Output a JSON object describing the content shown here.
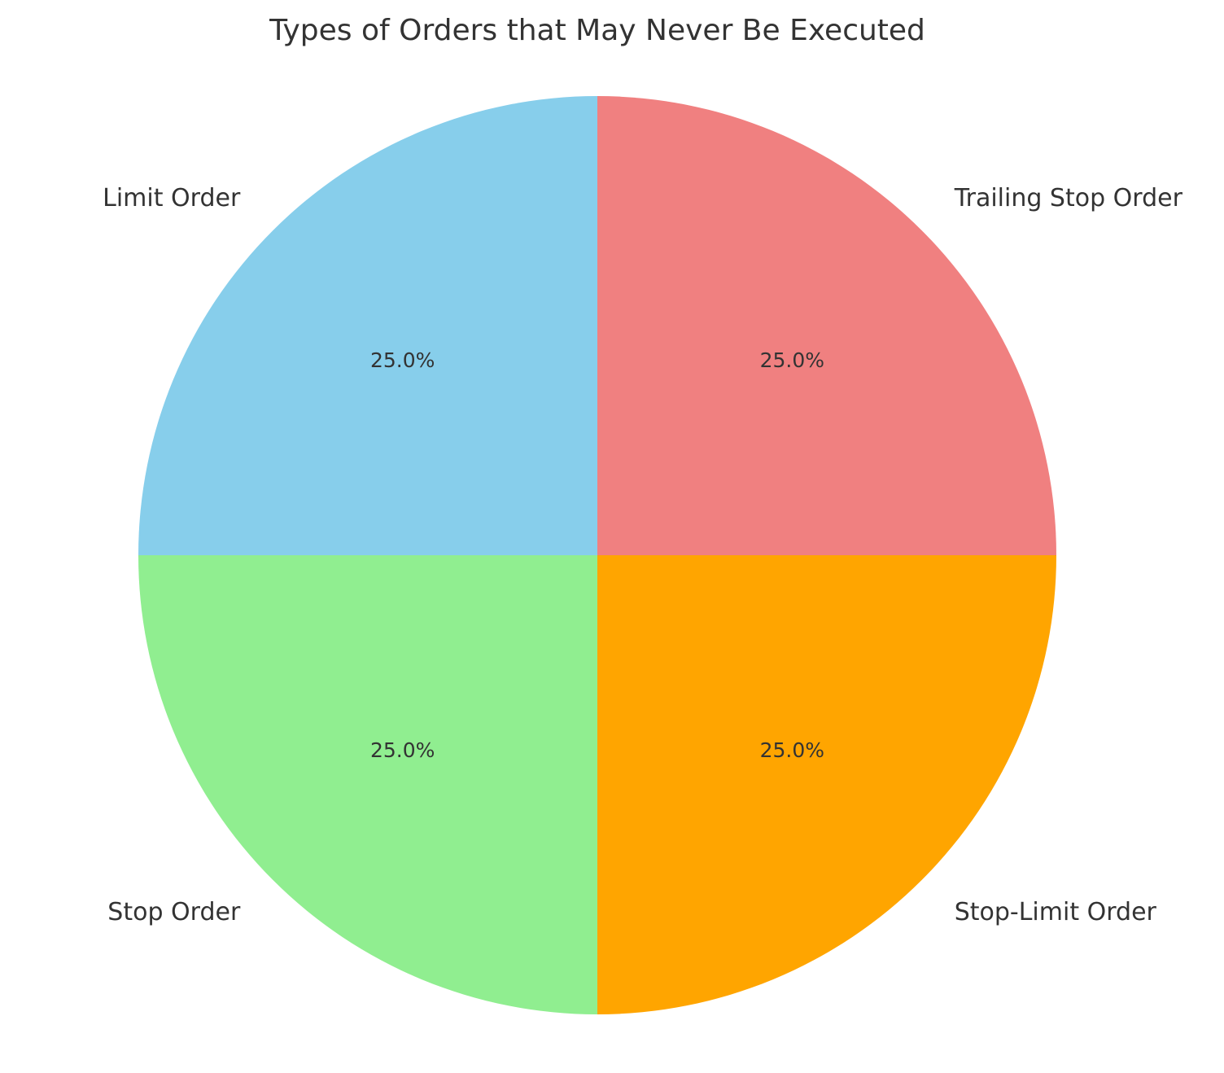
{
  "chart_data": {
    "type": "pie",
    "title": "Types of Orders that May Never Be Executed",
    "categories": [
      "Limit Order",
      "Stop Order",
      "Stop-Limit Order",
      "Trailing Stop Order"
    ],
    "values": [
      25,
      25,
      25,
      25
    ],
    "percent_labels": [
      "25.0%",
      "25.0%",
      "25.0%",
      "25.0%"
    ],
    "colors": [
      "#87CEEB",
      "#90EE90",
      "#FFA500",
      "#F08080"
    ],
    "start_angle_deg": 90,
    "direction": "counterclockwise",
    "legend": "none"
  }
}
